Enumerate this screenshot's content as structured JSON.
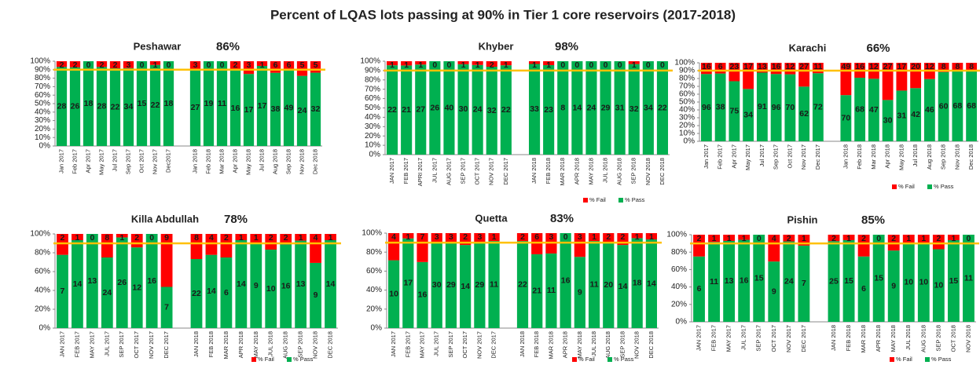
{
  "title": "Percent of LQAS lots passing at 90% in Tier 1 core reservoirs (2017-2018)",
  "chart_data": [
    {
      "type": "stacked_percent_bar",
      "title": "Peshawar",
      "pct": "86%",
      "categories": [
        "Jan 2017",
        "Feb 2017",
        "Apr 2017",
        "May 2017",
        "Jul 2017",
        "Sep 2017",
        "Oct 2017",
        "Nov 2017",
        "Dec2017",
        null,
        "Jan 2018",
        "Feb 2018",
        "Mar 2018",
        "Apr 2018",
        "May 2018",
        "Jul 2018",
        "Aug 2018",
        "Sep 2018",
        "Nov 2018",
        "Dec 2018"
      ],
      "series": [
        {
          "name": "% Pass",
          "color": "#00b050",
          "values": [
            28,
            26,
            18,
            28,
            22,
            34,
            15,
            22,
            18,
            null,
            27,
            19,
            11,
            16,
            17,
            17,
            38,
            49,
            24,
            32
          ]
        },
        {
          "name": "% Fail",
          "color": "#ff0000",
          "values": [
            2,
            2,
            0,
            2,
            2,
            3,
            0,
            1,
            0,
            null,
            3,
            0,
            0,
            2,
            3,
            1,
            6,
            6,
            5,
            5
          ]
        }
      ],
      "ylim": [
        0,
        100
      ],
      "yticks": [
        {
          "value": 0,
          "label": "0%"
        },
        {
          "value": 10,
          "label": "10%"
        },
        {
          "value": 20,
          "label": "20%"
        },
        {
          "value": 30,
          "label": "30%"
        },
        {
          "value": 40,
          "label": "40%"
        },
        {
          "value": 50,
          "label": "50%"
        },
        {
          "value": 60,
          "label": "60%"
        },
        {
          "value": 70,
          "label": "70%"
        },
        {
          "value": 80,
          "label": "80%"
        },
        {
          "value": 90,
          "label": "90%"
        },
        {
          "value": 100,
          "label": "100%"
        }
      ],
      "target": 90,
      "target_color": "#ffc000",
      "legend": false
    },
    {
      "type": "stacked_percent_bar",
      "title": "Khyber",
      "pct": "98%",
      "categories": [
        "JAN 2017",
        "FEB 2017",
        "APRI 2017",
        "JUL 2017",
        "AUG 2017",
        "SEP 2017",
        "OCT 2017",
        "NOV 2017",
        "DEC 2017",
        null,
        "JAN 2018",
        "FEB 2018",
        "MAR 2018",
        "APR 2018",
        "MAY 2018",
        "JUL 2018",
        "AUG 2018",
        "SEP 2018",
        "NOV 2018",
        "DEC 2018"
      ],
      "series": [
        {
          "name": "% Pass",
          "color": "#00b050",
          "values": [
            22,
            21,
            27,
            26,
            40,
            30,
            24,
            32,
            22,
            null,
            33,
            23,
            8,
            14,
            24,
            29,
            31,
            32,
            34,
            22
          ]
        },
        {
          "name": "% Fail",
          "color": "#ff0000",
          "values": [
            1,
            1,
            1,
            0,
            0,
            1,
            1,
            2,
            1,
            null,
            1,
            1,
            0,
            0,
            0,
            0,
            0,
            1,
            0,
            0
          ]
        }
      ],
      "ylim": [
        0,
        100
      ],
      "yticks": [
        {
          "value": 0,
          "label": "0%"
        },
        {
          "value": 10,
          "label": "10%"
        },
        {
          "value": 20,
          "label": "20%"
        },
        {
          "value": 30,
          "label": "30%"
        },
        {
          "value": 40,
          "label": "40%"
        },
        {
          "value": 50,
          "label": "50%"
        },
        {
          "value": 60,
          "label": "60%"
        },
        {
          "value": 70,
          "label": "70%"
        },
        {
          "value": 80,
          "label": "80%"
        },
        {
          "value": 90,
          "label": "90%"
        },
        {
          "value": 100,
          "label": "100%"
        }
      ],
      "target": 90,
      "target_color": "#ffc000",
      "legend": true
    },
    {
      "type": "stacked_percent_bar",
      "title": "Karachi",
      "pct": "66%",
      "categories": [
        "Jan 2017",
        "Feb 2017",
        "Apr 2017",
        "May 2017",
        "Jul 2017",
        "Sep 2017",
        "Oct 2017",
        "Nov 2017",
        "Dec 2017",
        null,
        "Jan 2018",
        "Feb 2018",
        "Mar 2018",
        "Apr 2018",
        "May 2018",
        "Jul 2018",
        "Aug 2018",
        "Sep 2018",
        "Nov 2018",
        "Dec 2018"
      ],
      "series": [
        {
          "name": "% Pass",
          "color": "#00b050",
          "values": [
            96,
            38,
            75,
            34,
            91,
            96,
            70,
            62,
            72,
            null,
            70,
            68,
            47,
            30,
            31,
            42,
            46,
            60,
            68,
            68
          ]
        },
        {
          "name": "% Fail",
          "color": "#ff0000",
          "values": [
            16,
            6,
            23,
            17,
            13,
            16,
            12,
            27,
            11,
            null,
            49,
            16,
            12,
            27,
            17,
            20,
            12,
            8,
            8,
            8
          ]
        }
      ],
      "ylim": [
        0,
        100
      ],
      "yticks": [
        {
          "value": 0,
          "label": "0%"
        },
        {
          "value": 10,
          "label": "10%"
        },
        {
          "value": 20,
          "label": "20%"
        },
        {
          "value": 30,
          "label": "30%"
        },
        {
          "value": 40,
          "label": "40%"
        },
        {
          "value": 50,
          "label": "50%"
        },
        {
          "value": 60,
          "label": "60%"
        },
        {
          "value": 70,
          "label": "70%"
        },
        {
          "value": 80,
          "label": "80%"
        },
        {
          "value": 90,
          "label": "90%"
        },
        {
          "value": 100,
          "label": "100%"
        }
      ],
      "target": 90,
      "target_color": "#ffc000",
      "legend": true
    },
    {
      "type": "stacked_percent_bar",
      "title": "Killa Abdullah",
      "pct": "78%",
      "categories": [
        "JAN 2017",
        "FEB 2017",
        "MAY 2017",
        "JUL 2017",
        "SEP 2017",
        "OCT 2017",
        "NOV 2017",
        "DEC 2017",
        null,
        "JAN 2018",
        "FEB 2018",
        "MAR 2018",
        "APR 2018",
        "MAY 2018",
        "JUL 2018",
        "AUG 2018",
        "SEP 2018",
        "NOV 2018",
        "DEC 2018"
      ],
      "series": [
        {
          "name": "% Pass",
          "color": "#00b050",
          "values": [
            7,
            14,
            13,
            24,
            26,
            12,
            16,
            7,
            null,
            22,
            14,
            6,
            14,
            9,
            10,
            16,
            13,
            9,
            14
          ]
        },
        {
          "name": "% Fail",
          "color": "#ff0000",
          "values": [
            2,
            1,
            0,
            8,
            1,
            2,
            0,
            9,
            null,
            8,
            4,
            2,
            1,
            1,
            2,
            2,
            1,
            4,
            1
          ]
        }
      ],
      "ylim": [
        0,
        100
      ],
      "yticks": [
        {
          "value": 0,
          "label": "0%"
        },
        {
          "value": 20,
          "label": "20%"
        },
        {
          "value": 40,
          "label": "40%"
        },
        {
          "value": 60,
          "label": "60%"
        },
        {
          "value": 80,
          "label": "80%"
        },
        {
          "value": 100,
          "label": "100%"
        }
      ],
      "target": 90,
      "target_color": "#ffc000",
      "legend": true
    },
    {
      "type": "stacked_percent_bar",
      "title": "Quetta",
      "pct": "83%",
      "categories": [
        "JAN 2017",
        "FEB 2017",
        "MAY 2017",
        "JUL 2017",
        "SEP 2017",
        "OCT 2017",
        "NOV 2017",
        "DEC 2017",
        null,
        "JAN 2018",
        "FEB 2018",
        "MAR 2018",
        "APR 2018",
        "MAY 2018",
        "JUL 2018",
        "AUG 2018",
        "SEP 2018",
        "NOV 2018",
        "DEC 2018"
      ],
      "series": [
        {
          "name": "% Pass",
          "color": "#00b050",
          "values": [
            10,
            17,
            16,
            30,
            29,
            14,
            29,
            11,
            null,
            22,
            21,
            11,
            16,
            9,
            11,
            20,
            14,
            18,
            14
          ]
        },
        {
          "name": "% Fail",
          "color": "#ff0000",
          "values": [
            4,
            1,
            7,
            3,
            3,
            2,
            3,
            1,
            null,
            2,
            6,
            3,
            0,
            3,
            1,
            2,
            2,
            1,
            1
          ]
        }
      ],
      "ylim": [
        0,
        100
      ],
      "yticks": [
        {
          "value": 0,
          "label": "0%"
        },
        {
          "value": 20,
          "label": "20%"
        },
        {
          "value": 40,
          "label": "40%"
        },
        {
          "value": 60,
          "label": "60%"
        },
        {
          "value": 80,
          "label": "80%"
        },
        {
          "value": 100,
          "label": "100%"
        }
      ],
      "target": 90,
      "target_color": "#ffc000",
      "legend": true
    },
    {
      "type": "stacked_percent_bar",
      "title": "Pishin",
      "pct": "85%",
      "categories": [
        "JAN 2017",
        "FEB 2017",
        "MAY 2017",
        "JUL 2017",
        "SEP 2017",
        "OCT 2017",
        "NOV 2017",
        "DEC 2017",
        null,
        "JAN 2018",
        "FEB 2018",
        "MAR 2018",
        "APR 2018",
        "MAY 2018",
        "JUL 2018",
        "AUG 2018",
        "SEP 2018",
        "OCT 2018",
        "NOV 2018"
      ],
      "series": [
        {
          "name": "% Pass",
          "color": "#00b050",
          "values": [
            6,
            11,
            13,
            16,
            15,
            9,
            24,
            7,
            null,
            25,
            15,
            6,
            15,
            9,
            10,
            10,
            10,
            15,
            11
          ]
        },
        {
          "name": "% Fail",
          "color": "#ff0000",
          "values": [
            2,
            1,
            1,
            1,
            0,
            4,
            2,
            1,
            null,
            2,
            1,
            2,
            0,
            2,
            1,
            1,
            2,
            1,
            0
          ]
        }
      ],
      "ylim": [
        0,
        100
      ],
      "yticks": [
        {
          "value": 0,
          "label": "0%"
        },
        {
          "value": 20,
          "label": "20%"
        },
        {
          "value": 40,
          "label": "40%"
        },
        {
          "value": 60,
          "label": "60%"
        },
        {
          "value": 80,
          "label": "80%"
        },
        {
          "value": 100,
          "label": "100%"
        }
      ],
      "target": 90,
      "target_color": "#ffc000",
      "legend": true
    }
  ]
}
